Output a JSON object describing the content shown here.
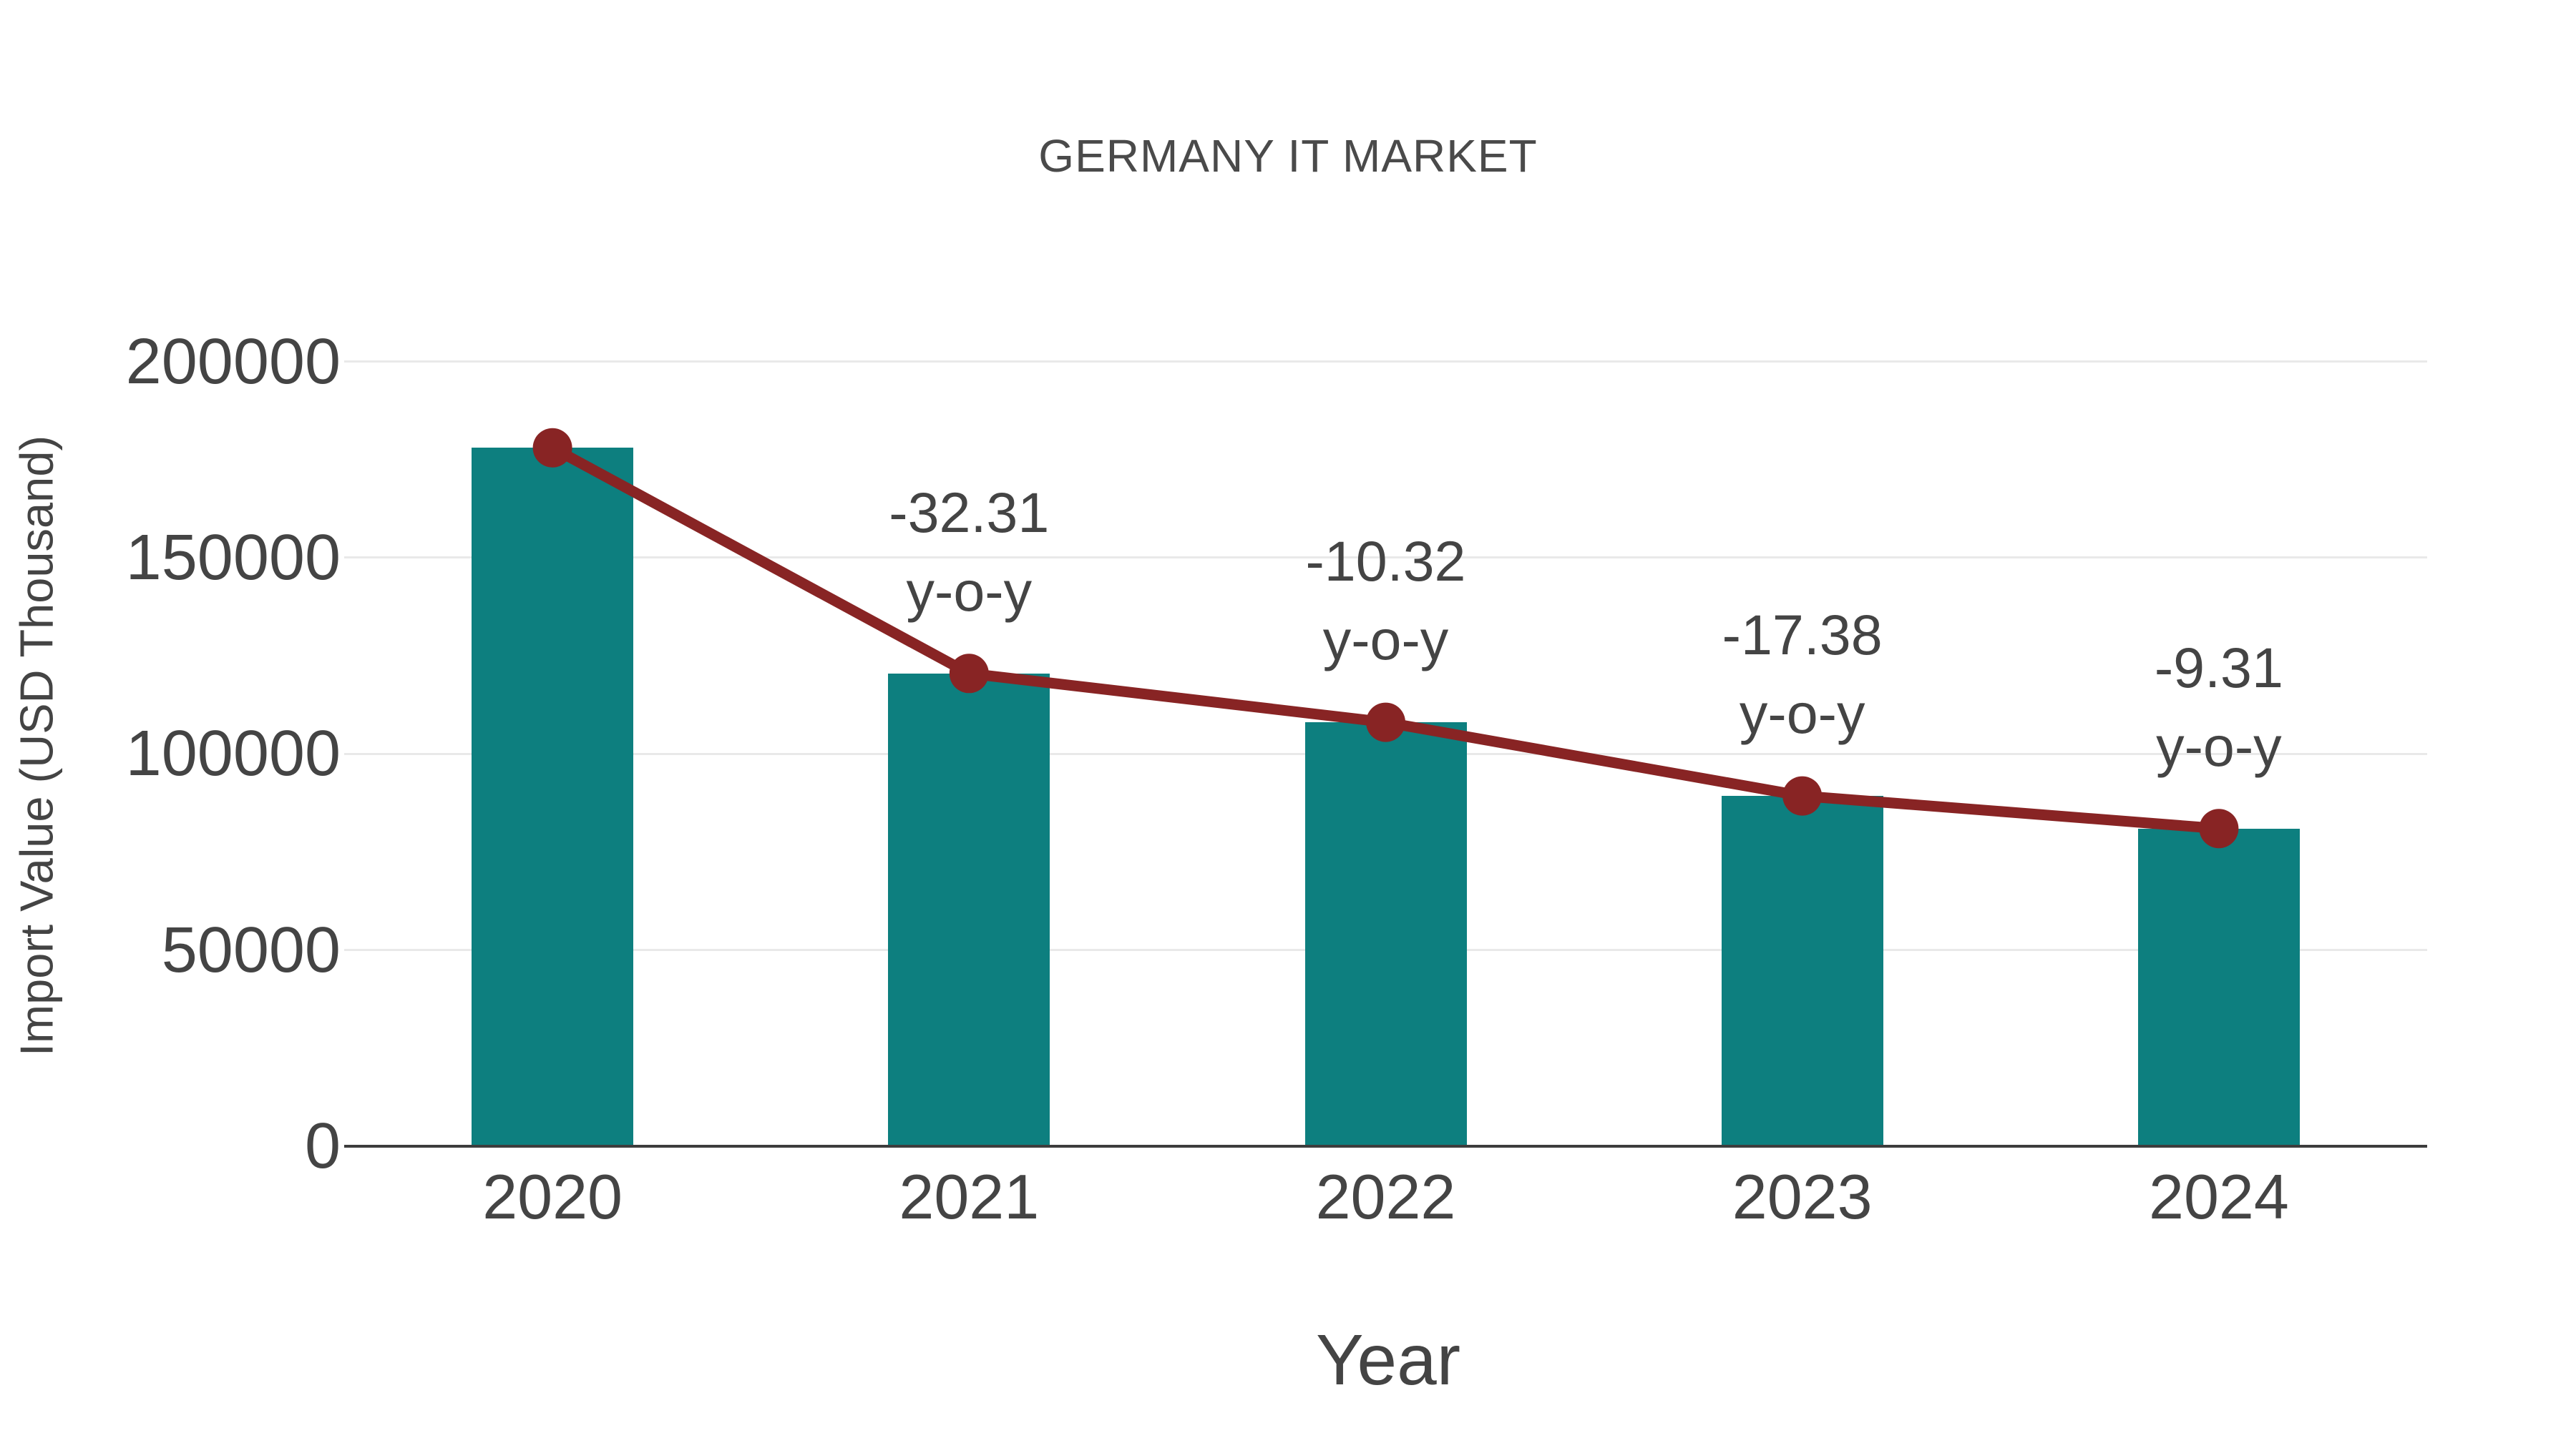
{
  "chart_data": {
    "type": "bar",
    "title": "GERMANY IT MARKET",
    "xlabel": "Year",
    "ylabel": "Import Value (USD Thousand)",
    "categories": [
      "2020",
      "2021",
      "2022",
      "2023",
      "2024"
    ],
    "series": [
      {
        "name": "import-value-bars",
        "type": "bar",
        "color": "#0d7f7f",
        "values": [
          178000,
          120490,
          108050,
          89270,
          80960
        ]
      },
      {
        "name": "import-value-line",
        "type": "line",
        "color": "#882424",
        "values": [
          178000,
          120490,
          108050,
          89270,
          80960
        ]
      }
    ],
    "annotations": [
      {
        "category": "2021",
        "lines": [
          "-32.31",
          "y-o-y"
        ]
      },
      {
        "category": "2022",
        "lines": [
          "-10.32",
          "y-o-y"
        ]
      },
      {
        "category": "2023",
        "lines": [
          "-17.38",
          "y-o-y"
        ]
      },
      {
        "category": "2024",
        "lines": [
          "-9.31",
          "y-o-y"
        ]
      }
    ],
    "ylim": [
      0,
      200000
    ],
    "yticks": [
      0,
      50000,
      100000,
      150000,
      200000
    ],
    "grid": "horizontal",
    "legend": "none"
  },
  "style": {
    "background": "#ffffff",
    "bar_color": "#0d7f7f",
    "line_color": "#882424",
    "text_color": "#444444",
    "title_color": "#4a4a4a",
    "grid_color": "#e9e9e9",
    "axis_color": "#3d3d3d"
  }
}
